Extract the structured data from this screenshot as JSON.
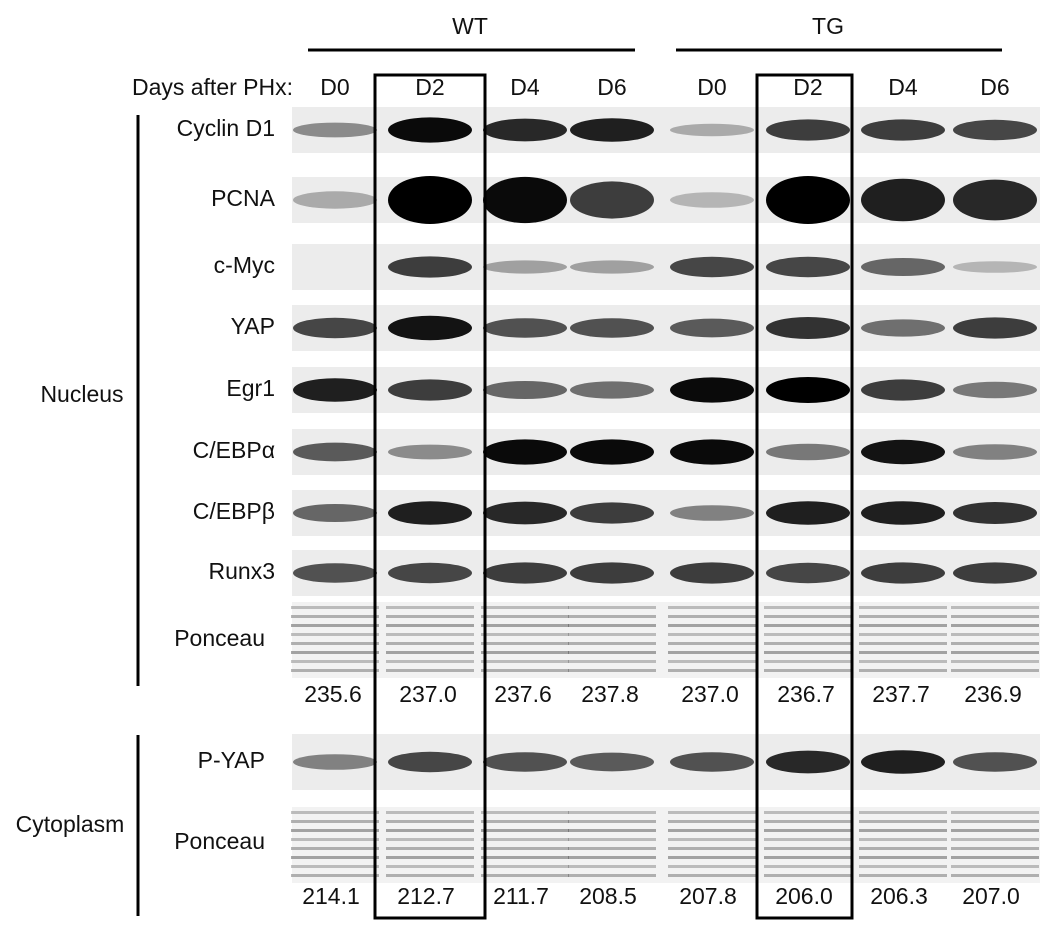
{
  "header": {
    "groups": [
      {
        "label": "WT"
      },
      {
        "label": "TG"
      }
    ],
    "days_label": "Days after PHx:",
    "lanes": [
      "D0",
      "D2",
      "D4",
      "D6",
      "D0",
      "D2",
      "D4",
      "D6"
    ]
  },
  "nucleus": {
    "label": "Nucleus",
    "rows": [
      "Cyclin D1",
      "PCNA",
      "c-Myc",
      "YAP",
      "Egr1",
      "C/EBPα",
      "C/EBPβ",
      "Runx3"
    ],
    "ponceau_label": "Ponceau",
    "ponceau_values": [
      "235.6",
      "237.0",
      "237.6",
      "237.8",
      "237.0",
      "236.7",
      "237.7",
      "236.9"
    ]
  },
  "cytoplasm": {
    "label": "Cytoplasm",
    "rows": [
      "P-YAP"
    ],
    "ponceau_label": "Ponceau",
    "ponceau_values": [
      "214.1",
      "212.7",
      "211.7",
      "208.5",
      "207.8",
      "206.0",
      "206.3",
      "207.0"
    ]
  }
}
